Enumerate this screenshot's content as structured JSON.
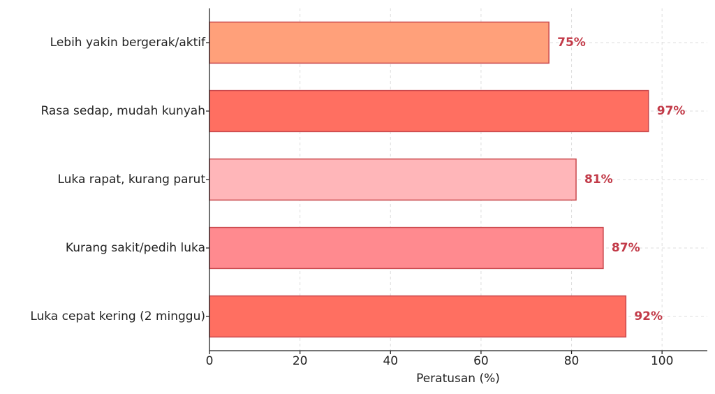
{
  "chart_data": {
    "type": "barh",
    "categories": [
      "Lebih yakin bergerak/aktif",
      "Rasa sedap, mudah kunyah",
      "Luka rapat, kurang parut",
      "Kurang sakit/pedih luka",
      "Luka cepat kering (2 minggu)"
    ],
    "values": [
      75,
      97,
      81,
      87,
      92
    ],
    "value_labels": [
      "75%",
      "97%",
      "81%",
      "87%",
      "92%"
    ],
    "colors": [
      "#ffa07a",
      "#ff6f61",
      "#ffb6b9",
      "#ff8a8f",
      "#ff6f61"
    ],
    "edge_color": "#c9484c",
    "label_color": "#c23a48",
    "xlabel": "Peratusan (%)",
    "xlim": [
      0,
      110
    ],
    "xticks": [
      0,
      20,
      40,
      60,
      80,
      100
    ],
    "grid": true
  }
}
